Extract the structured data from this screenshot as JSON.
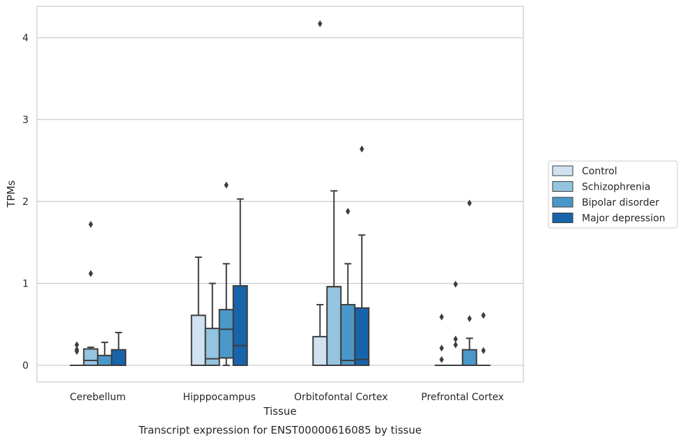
{
  "chart_data": {
    "type": "box",
    "xlabel": "Tissue",
    "ylabel": "TPMs",
    "caption": "Transcript expression for ENST00000616085 by tissue",
    "ylim": [
      -0.2,
      4.38
    ],
    "yticks": [
      0,
      1,
      2,
      3,
      4
    ],
    "grid": "horizontal",
    "legend_position": "right",
    "categories": [
      "Cerebellum",
      "Hipppocampus",
      "Orbitofontal Cortex",
      "Prefrontal Cortex"
    ],
    "series": [
      {
        "name": "Control",
        "color": "#d0e1f2",
        "boxes": [
          {
            "q1": 0,
            "median": 0,
            "q3": 0,
            "whisker_low": 0,
            "whisker_high": 0,
            "outliers": [
              0.25,
              0.19,
              0.17
            ]
          },
          {
            "q1": 0,
            "median": 0,
            "q3": 0.61,
            "whisker_low": 0,
            "whisker_high": 1.32,
            "outliers": []
          },
          {
            "q1": 0,
            "median": 0,
            "q3": 0.35,
            "whisker_low": 0,
            "whisker_high": 0.74,
            "outliers": [
              4.17
            ]
          },
          {
            "q1": 0,
            "median": 0,
            "q3": 0,
            "whisker_low": 0,
            "whisker_high": 0,
            "outliers": [
              0.59,
              0.21,
              0.07
            ]
          }
        ]
      },
      {
        "name": "Schizophrenia",
        "color": "#94c4df",
        "boxes": [
          {
            "q1": 0,
            "median": 0.06,
            "q3": 0.2,
            "whisker_low": 0,
            "whisker_high": 0.22,
            "outliers": [
              1.72,
              1.12
            ]
          },
          {
            "q1": 0,
            "median": 0.08,
            "q3": 0.45,
            "whisker_low": 0,
            "whisker_high": 1.0,
            "outliers": []
          },
          {
            "q1": 0,
            "median": 0.96,
            "q3": 0.96,
            "whisker_low": 0,
            "whisker_high": 2.13,
            "outliers": []
          },
          {
            "q1": 0,
            "median": 0,
            "q3": 0,
            "whisker_low": 0,
            "whisker_high": 0,
            "outliers": [
              0.99,
              0.32,
              0.25
            ]
          }
        ]
      },
      {
        "name": "Bipolar disorder",
        "color": "#4a98c9",
        "boxes": [
          {
            "q1": 0,
            "median": 0,
            "q3": 0.12,
            "whisker_low": 0,
            "whisker_high": 0.28,
            "outliers": []
          },
          {
            "q1": 0.09,
            "median": 0.44,
            "q3": 0.68,
            "whisker_low": 0,
            "whisker_high": 1.24,
            "outliers": [
              2.2
            ]
          },
          {
            "q1": 0,
            "median": 0.06,
            "q3": 0.74,
            "whisker_low": 0,
            "whisker_high": 1.24,
            "outliers": [
              1.88
            ]
          },
          {
            "q1": 0,
            "median": 0,
            "q3": 0.19,
            "whisker_low": 0,
            "whisker_high": 0.33,
            "outliers": [
              1.98,
              0.57
            ]
          }
        ]
      },
      {
        "name": "Major depression",
        "color": "#1764ab",
        "boxes": [
          {
            "q1": 0,
            "median": 0,
            "q3": 0.19,
            "whisker_low": 0,
            "whisker_high": 0.4,
            "outliers": []
          },
          {
            "q1": 0,
            "median": 0.24,
            "q3": 0.97,
            "whisker_low": 0,
            "whisker_high": 2.03,
            "outliers": []
          },
          {
            "q1": 0,
            "median": 0.07,
            "q3": 0.7,
            "whisker_low": 0,
            "whisker_high": 1.59,
            "outliers": [
              2.64
            ]
          },
          {
            "q1": 0,
            "median": 0,
            "q3": 0,
            "whisker_low": 0,
            "whisker_high": 0,
            "outliers": [
              0.61,
              0.18
            ]
          }
        ]
      }
    ]
  }
}
